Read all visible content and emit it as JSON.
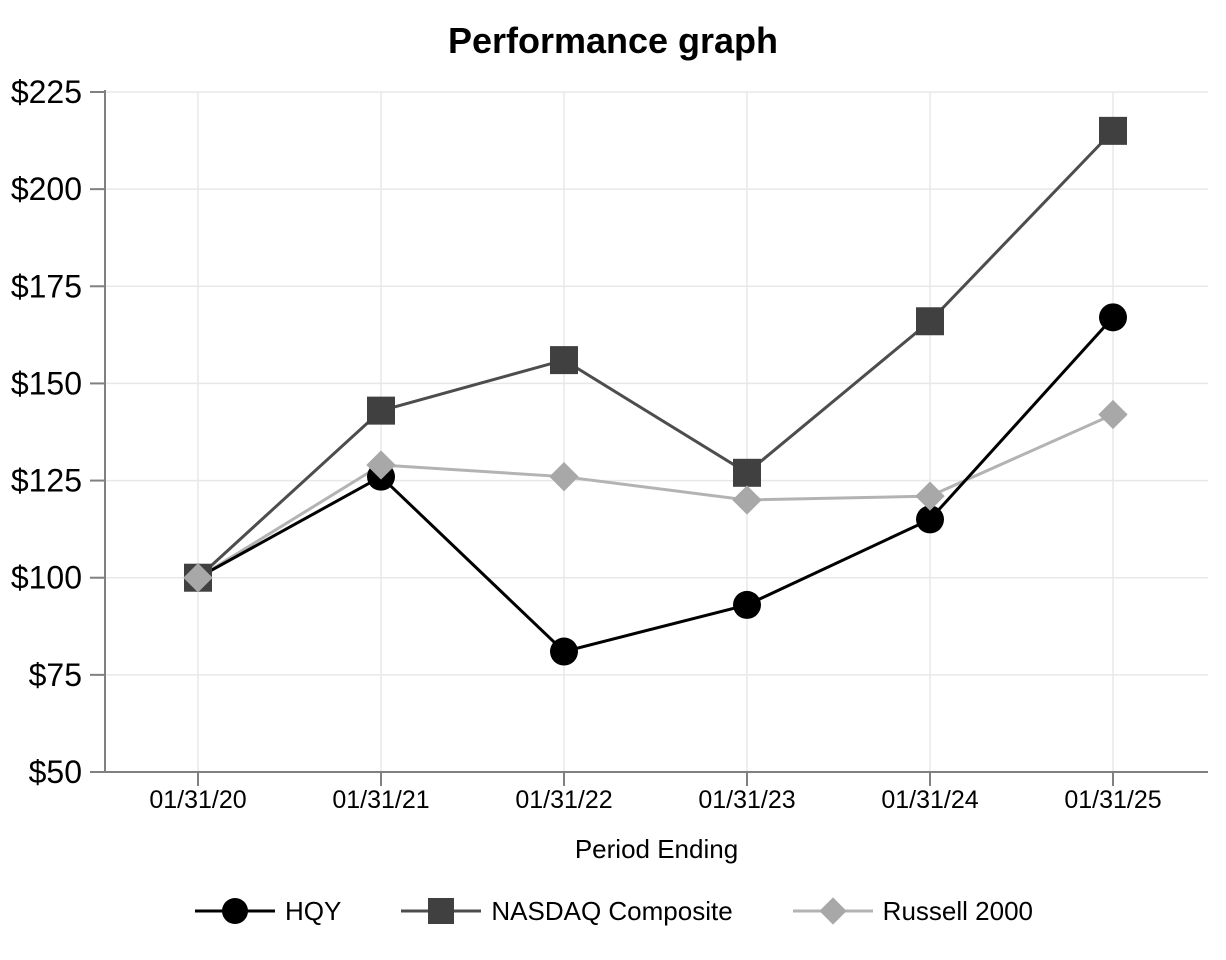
{
  "chart_data": {
    "type": "line",
    "title": "Performance graph",
    "xlabel": "Period Ending",
    "ylabel": "",
    "categories": [
      "01/31/20",
      "01/31/21",
      "01/31/22",
      "01/31/23",
      "01/31/24",
      "01/31/25"
    ],
    "y_tick_labels": [
      "$225",
      "$200",
      "$175",
      "$150",
      "$125",
      "$100",
      "$75",
      "$50"
    ],
    "y_tick_values": [
      225,
      200,
      175,
      150,
      125,
      100,
      75,
      50
    ],
    "ylim": [
      50,
      225
    ],
    "grid": true,
    "legend_position": "bottom",
    "colors": {
      "grid": "#e8e8e8",
      "axis": "#808080",
      "text": "#000000",
      "background": "#ffffff"
    },
    "series": [
      {
        "name": "HQY",
        "marker": "circle",
        "color": "#000000",
        "line_color": "#000000",
        "values": [
          100,
          126,
          81,
          93,
          115,
          167
        ]
      },
      {
        "name": "NASDAQ Composite",
        "marker": "square",
        "color": "#404040",
        "line_color": "#4d4d4d",
        "values": [
          100,
          143,
          156,
          127,
          166,
          215
        ]
      },
      {
        "name": "Russell 2000",
        "marker": "diamond",
        "color": "#a8a8a8",
        "line_color": "#b3b3b3",
        "values": [
          100,
          129,
          126,
          120,
          121,
          142
        ]
      }
    ]
  }
}
